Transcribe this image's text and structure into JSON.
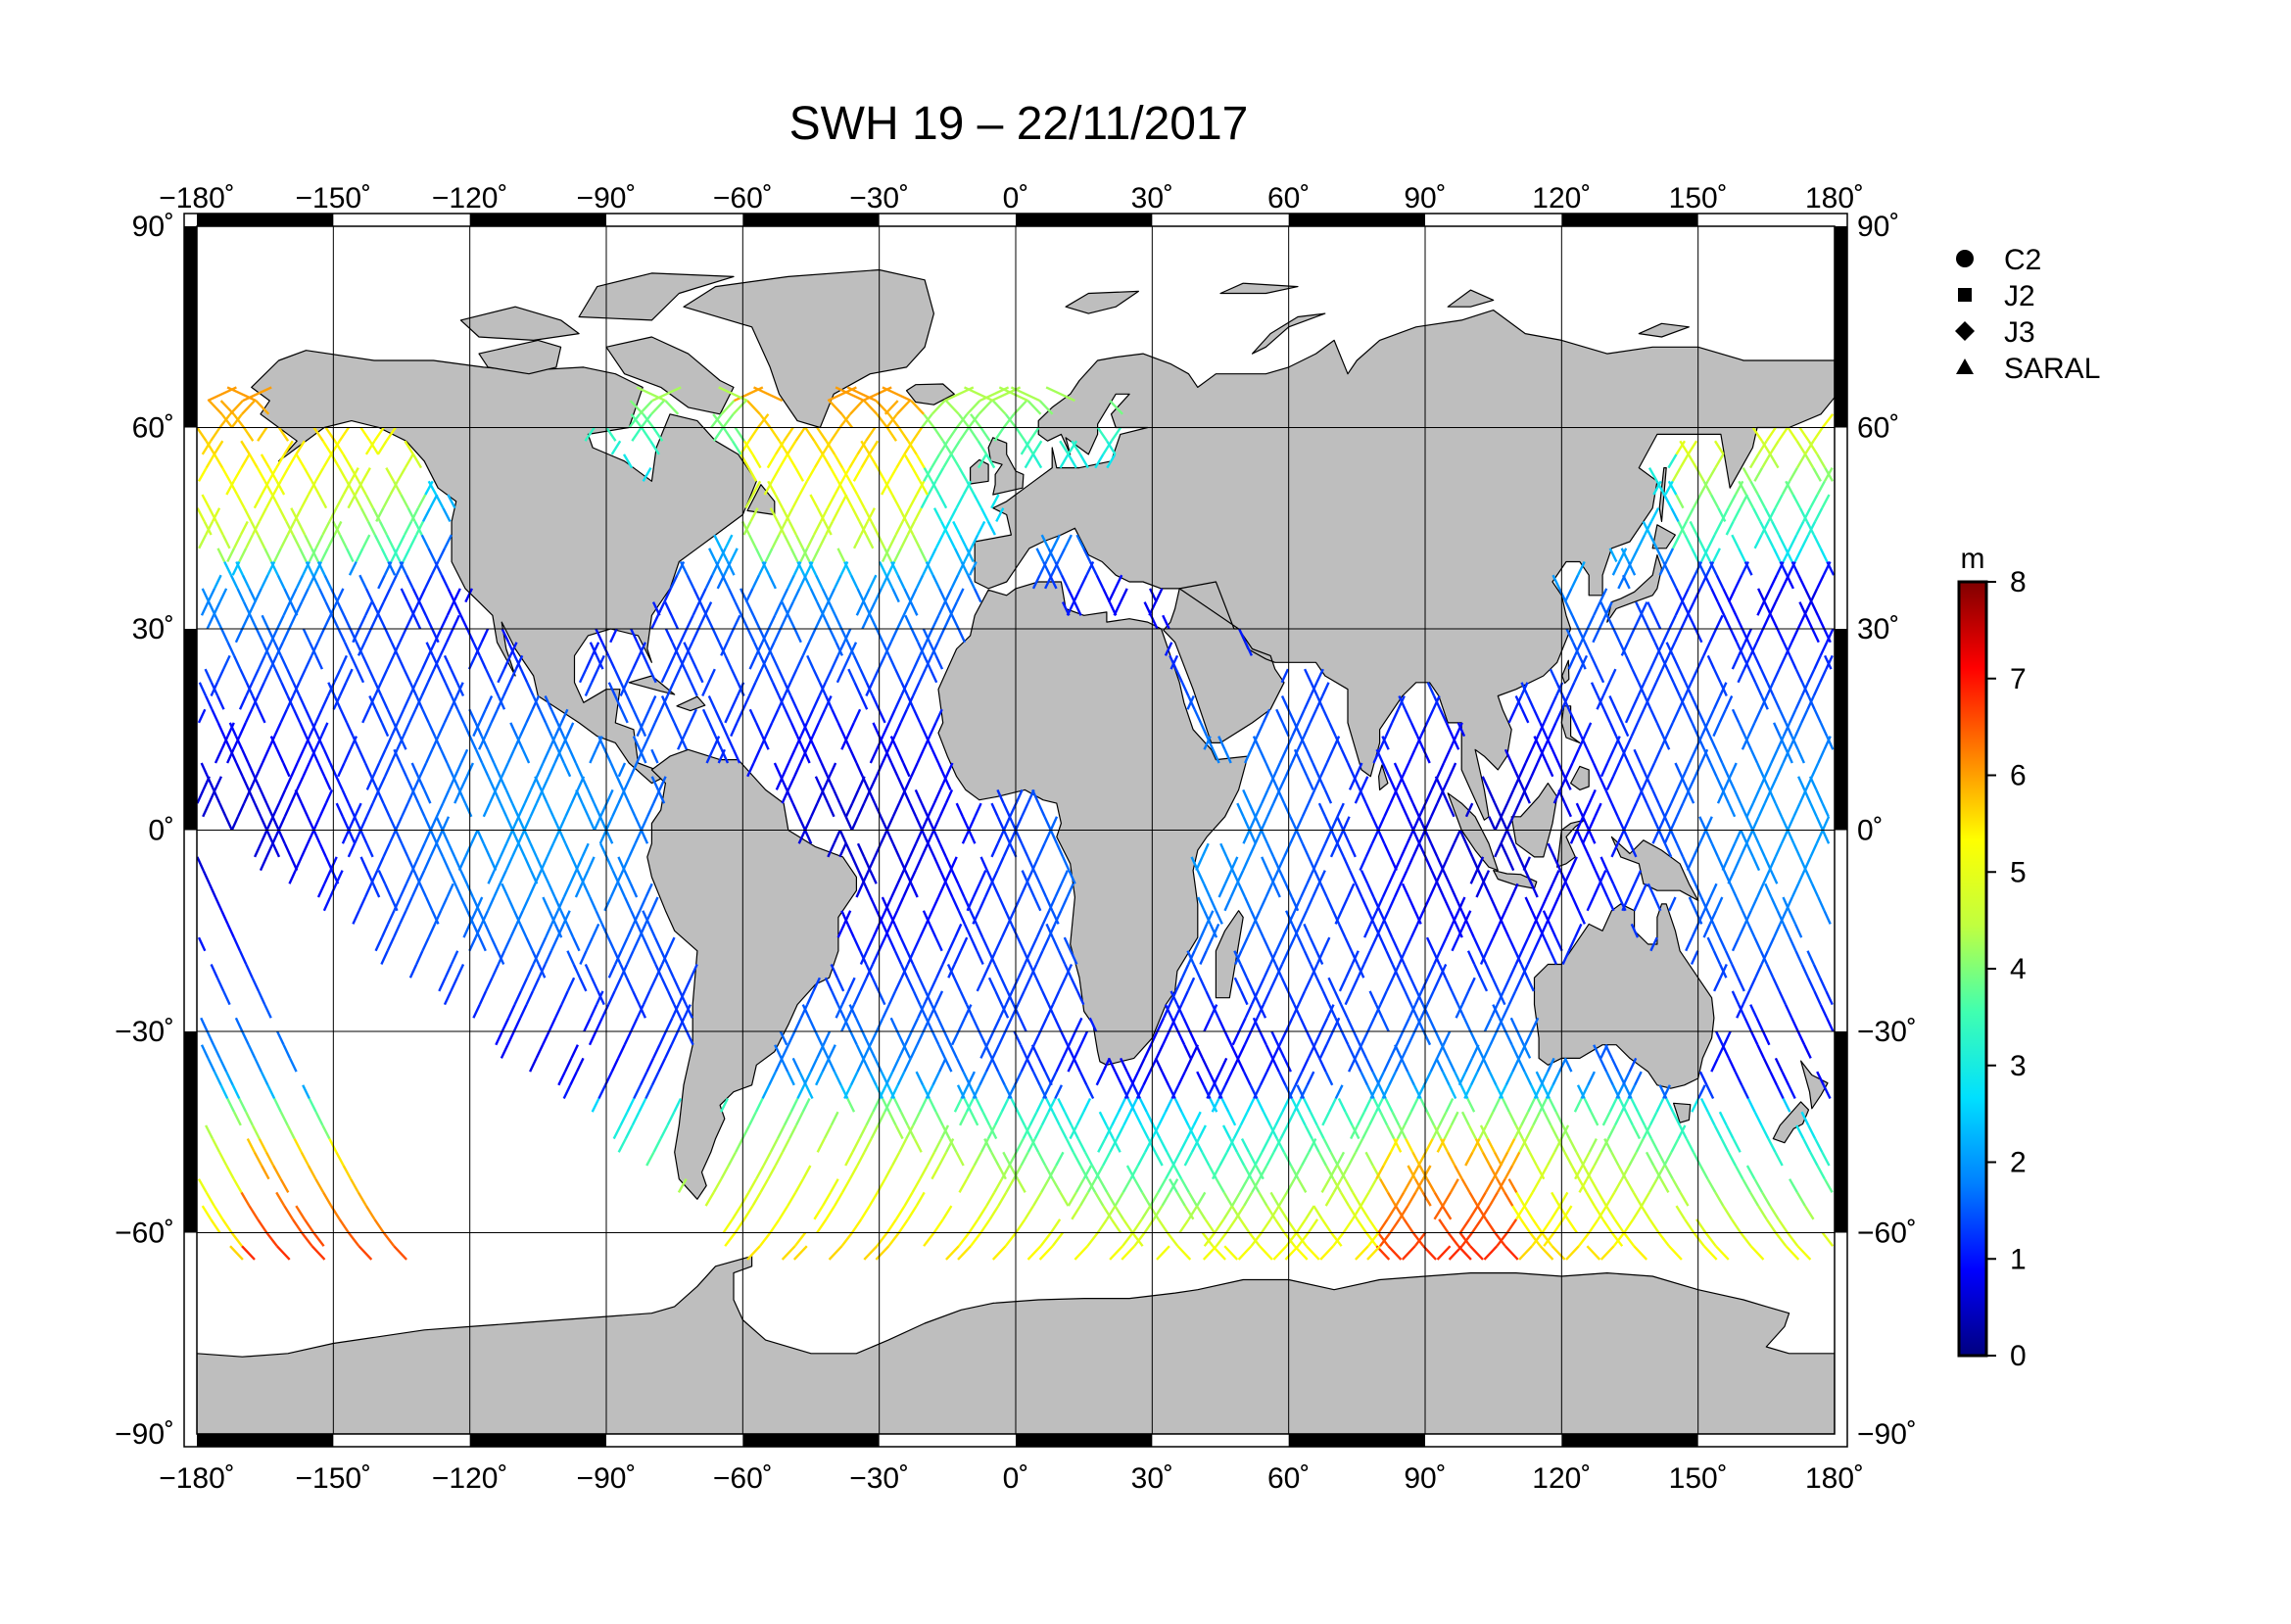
{
  "title": "SWH 19 – 22/11/2017",
  "map": {
    "projection": "equirectangular",
    "lon_range": [
      -180,
      180
    ],
    "lat_range": [
      -90,
      90
    ],
    "grid_spacing_lon": 30,
    "grid_spacing_lat": 30,
    "land_color": "#bebebe",
    "ocean_color": "#ffffff",
    "lon_tick_values": [
      -180,
      -150,
      -120,
      -90,
      -60,
      -30,
      0,
      30,
      60,
      90,
      120,
      150,
      180
    ],
    "lat_tick_values": [
      90,
      60,
      30,
      0,
      -30,
      -60,
      -90
    ],
    "lon_tick_labels": [
      "−180˚",
      "−150˚",
      "−120˚",
      "−90˚",
      "−60˚",
      "−30˚",
      "0˚",
      "30˚",
      "60˚",
      "90˚",
      "120˚",
      "150˚",
      "180˚"
    ],
    "lat_tick_labels": [
      "90˚",
      "60˚",
      "30˚",
      "0˚",
      "−30˚",
      "−60˚",
      "−90˚"
    ]
  },
  "legend": {
    "items": [
      {
        "label": "C2",
        "marker": "circle"
      },
      {
        "label": "J2",
        "marker": "square"
      },
      {
        "label": "J3",
        "marker": "diamond"
      },
      {
        "label": "SARAL",
        "marker": "triangle"
      }
    ]
  },
  "colorbar": {
    "unit": "m",
    "min": 0,
    "max": 8,
    "ticks": [
      "0",
      "1",
      "2",
      "3",
      "4",
      "5",
      "6",
      "7",
      "8"
    ],
    "colors": [
      "#000080",
      "#0000ff",
      "#0080ff",
      "#00e0ff",
      "#40ffb0",
      "#c0ff40",
      "#ffff00",
      "#ff8000",
      "#ff0000",
      "#800000"
    ]
  },
  "chart_data": {
    "type": "scatter",
    "title": "SWH 19 – 22/11/2017",
    "xlabel": "",
    "ylabel": "",
    "xlim": [
      -180,
      180
    ],
    "ylim": [
      -90,
      90
    ],
    "grid": true,
    "legend_position": "right",
    "series": [
      {
        "name": "C2",
        "marker": "circle"
      },
      {
        "name": "J2",
        "marker": "square"
      },
      {
        "name": "J3",
        "marker": "diamond"
      },
      {
        "name": "SARAL",
        "marker": "triangle"
      }
    ]
  }
}
